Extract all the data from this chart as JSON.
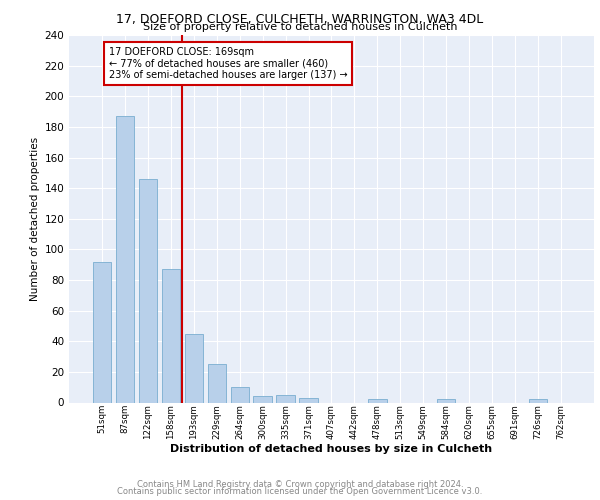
{
  "title": "17, DOEFORD CLOSE, CULCHETH, WARRINGTON, WA3 4DL",
  "subtitle": "Size of property relative to detached houses in Culcheth",
  "xlabel": "Distribution of detached houses by size in Culcheth",
  "ylabel": "Number of detached properties",
  "categories": [
    "51sqm",
    "87sqm",
    "122sqm",
    "158sqm",
    "193sqm",
    "229sqm",
    "264sqm",
    "300sqm",
    "335sqm",
    "371sqm",
    "407sqm",
    "442sqm",
    "478sqm",
    "513sqm",
    "549sqm",
    "584sqm",
    "620sqm",
    "655sqm",
    "691sqm",
    "726sqm",
    "762sqm"
  ],
  "values": [
    92,
    187,
    146,
    87,
    45,
    25,
    10,
    4,
    5,
    3,
    0,
    0,
    2,
    0,
    0,
    2,
    0,
    0,
    0,
    2,
    0
  ],
  "bar_color": "#b8d0ea",
  "bar_edge_color": "#7aaed0",
  "property_line_x": 3.5,
  "annotation_title": "17 DOEFORD CLOSE: 169sqm",
  "annotation_line1": "← 77% of detached houses are smaller (460)",
  "annotation_line2": "23% of semi-detached houses are larger (137) →",
  "annotation_box_color": "#cc0000",
  "ylim": [
    0,
    240
  ],
  "yticks": [
    0,
    20,
    40,
    60,
    80,
    100,
    120,
    140,
    160,
    180,
    200,
    220,
    240
  ],
  "background_color": "#e8eef8",
  "grid_color": "#ffffff",
  "footer_line1": "Contains HM Land Registry data © Crown copyright and database right 2024.",
  "footer_line2": "Contains public sector information licensed under the Open Government Licence v3.0."
}
